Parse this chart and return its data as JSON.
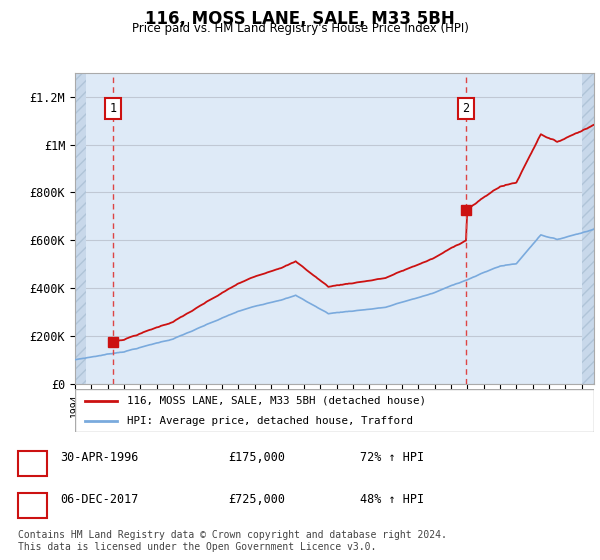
{
  "title": "116, MOSS LANE, SALE, M33 5BH",
  "subtitle": "Price paid vs. HM Land Registry's House Price Index (HPI)",
  "ylim": [
    0,
    1300000
  ],
  "yticks": [
    0,
    200000,
    400000,
    600000,
    800000,
    1000000,
    1200000
  ],
  "ytick_labels": [
    "£0",
    "£200K",
    "£400K",
    "£600K",
    "£800K",
    "£1M",
    "£1.2M"
  ],
  "hpi_color": "#7aaadd",
  "price_color": "#cc1111",
  "dashed_color": "#dd4444",
  "bg_color": "#deeaf7",
  "hatch_color": "#c8d8ea",
  "sale1_date": 1996.33,
  "sale1_price": 175000,
  "sale1_label": "1",
  "sale2_date": 2017.92,
  "sale2_price": 725000,
  "sale2_label": "2",
  "legend_line1": "116, MOSS LANE, SALE, M33 5BH (detached house)",
  "legend_line2": "HPI: Average price, detached house, Trafford",
  "table_row1": [
    "1",
    "30-APR-1996",
    "£175,000",
    "72% ↑ HPI"
  ],
  "table_row2": [
    "2",
    "06-DEC-2017",
    "£725,000",
    "48% ↑ HPI"
  ],
  "footnote": "Contains HM Land Registry data © Crown copyright and database right 2024.\nThis data is licensed under the Open Government Licence v3.0.",
  "xmin": 1994.0,
  "xmax": 2025.75
}
